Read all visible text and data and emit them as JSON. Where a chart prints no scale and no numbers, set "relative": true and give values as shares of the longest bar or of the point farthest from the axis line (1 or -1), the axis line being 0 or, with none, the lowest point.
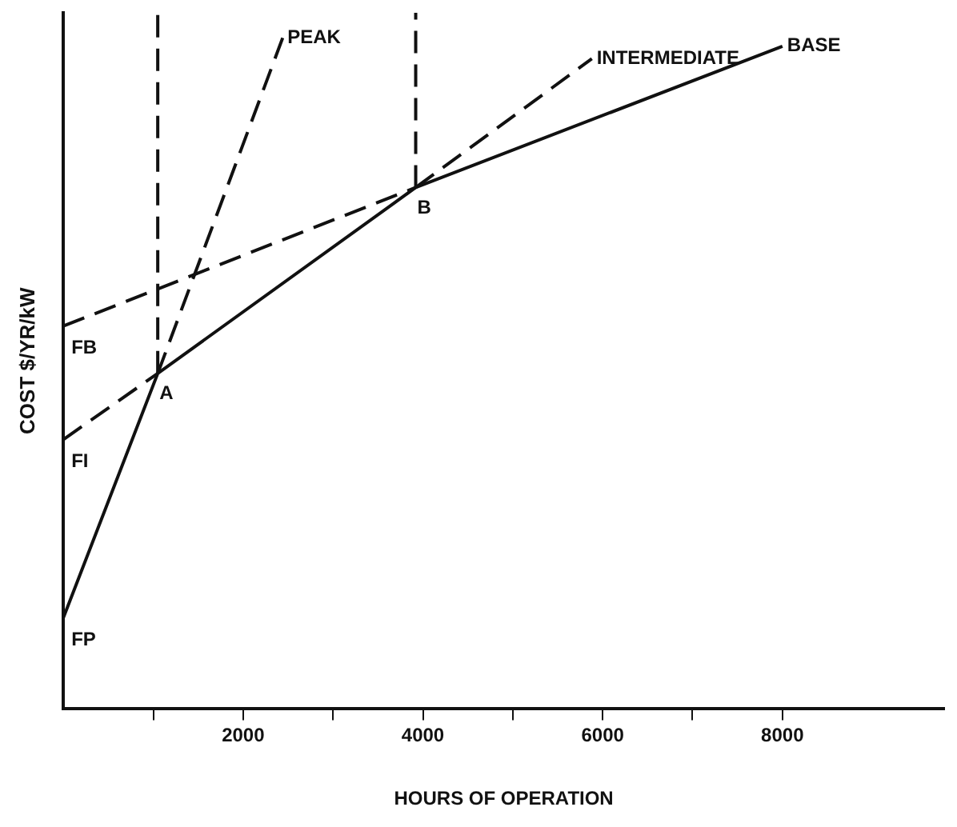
{
  "chart_data": {
    "type": "line",
    "relative": true,
    "xlabel": "HOURS OF OPERATION",
    "ylabel": "COST $/YR/kW",
    "marker": "none",
    "grid": false,
    "legend": false,
    "xlim": [
      0,
      9800
    ],
    "xticks": [
      {
        "value": 1000,
        "label": null
      },
      2000,
      {
        "value": 3000,
        "label": null
      },
      4000,
      {
        "value": 5000,
        "label": null
      },
      6000,
      {
        "value": 7000,
        "label": null
      },
      8000
    ],
    "series": [
      {
        "color": "#111111",
        "line_style": "solid",
        "x": [
          0,
          1050,
          3920,
          8000
        ],
        "values": [
          0.131,
          0.482,
          0.749,
          0.952
        ]
      },
      {
        "color": "#111111",
        "line_style": "dashed",
        "x": [
          1050,
          2440
        ],
        "values": [
          0.482,
          0.964
        ]
      },
      {
        "color": "#111111",
        "line_style": "dashed",
        "x": [
          0,
          1050,
          2500,
          3920,
          5880
        ],
        "values": [
          0.387,
          0.482,
          null,
          0.749,
          0.934
        ]
      },
      {
        "color": "#111111",
        "line_style": "dashed",
        "x": [
          0,
          3920
        ],
        "values": [
          0.55,
          0.749
        ]
      },
      {
        "color": "#111111",
        "line_style": "dashed",
        "x": [
          1050,
          1050
        ],
        "values": [
          0.482,
          1
        ]
      },
      {
        "color": "#111111",
        "line_style": "dashed",
        "x": [
          3920,
          3920
        ],
        "values": [
          0.749,
          1
        ]
      }
    ],
    "annotations": [
      {
        "text": "PEAK",
        "x": 2440,
        "y": 0.964
      },
      {
        "text": "INTERMEDIATE",
        "x": 5880,
        "y": 0.934
      },
      {
        "text": "BASE",
        "x": 8000,
        "y": 0.952
      },
      {
        "text": "FB",
        "x": 0,
        "y": 0.55
      },
      {
        "text": "FI",
        "x": 0,
        "y": 0.387
      },
      {
        "text": "FP",
        "x": 0,
        "y": 0.131
      },
      {
        "text": "A",
        "x": 1050,
        "y": 0.482
      },
      {
        "text": "B",
        "x": 3920,
        "y": 0.749
      }
    ]
  }
}
